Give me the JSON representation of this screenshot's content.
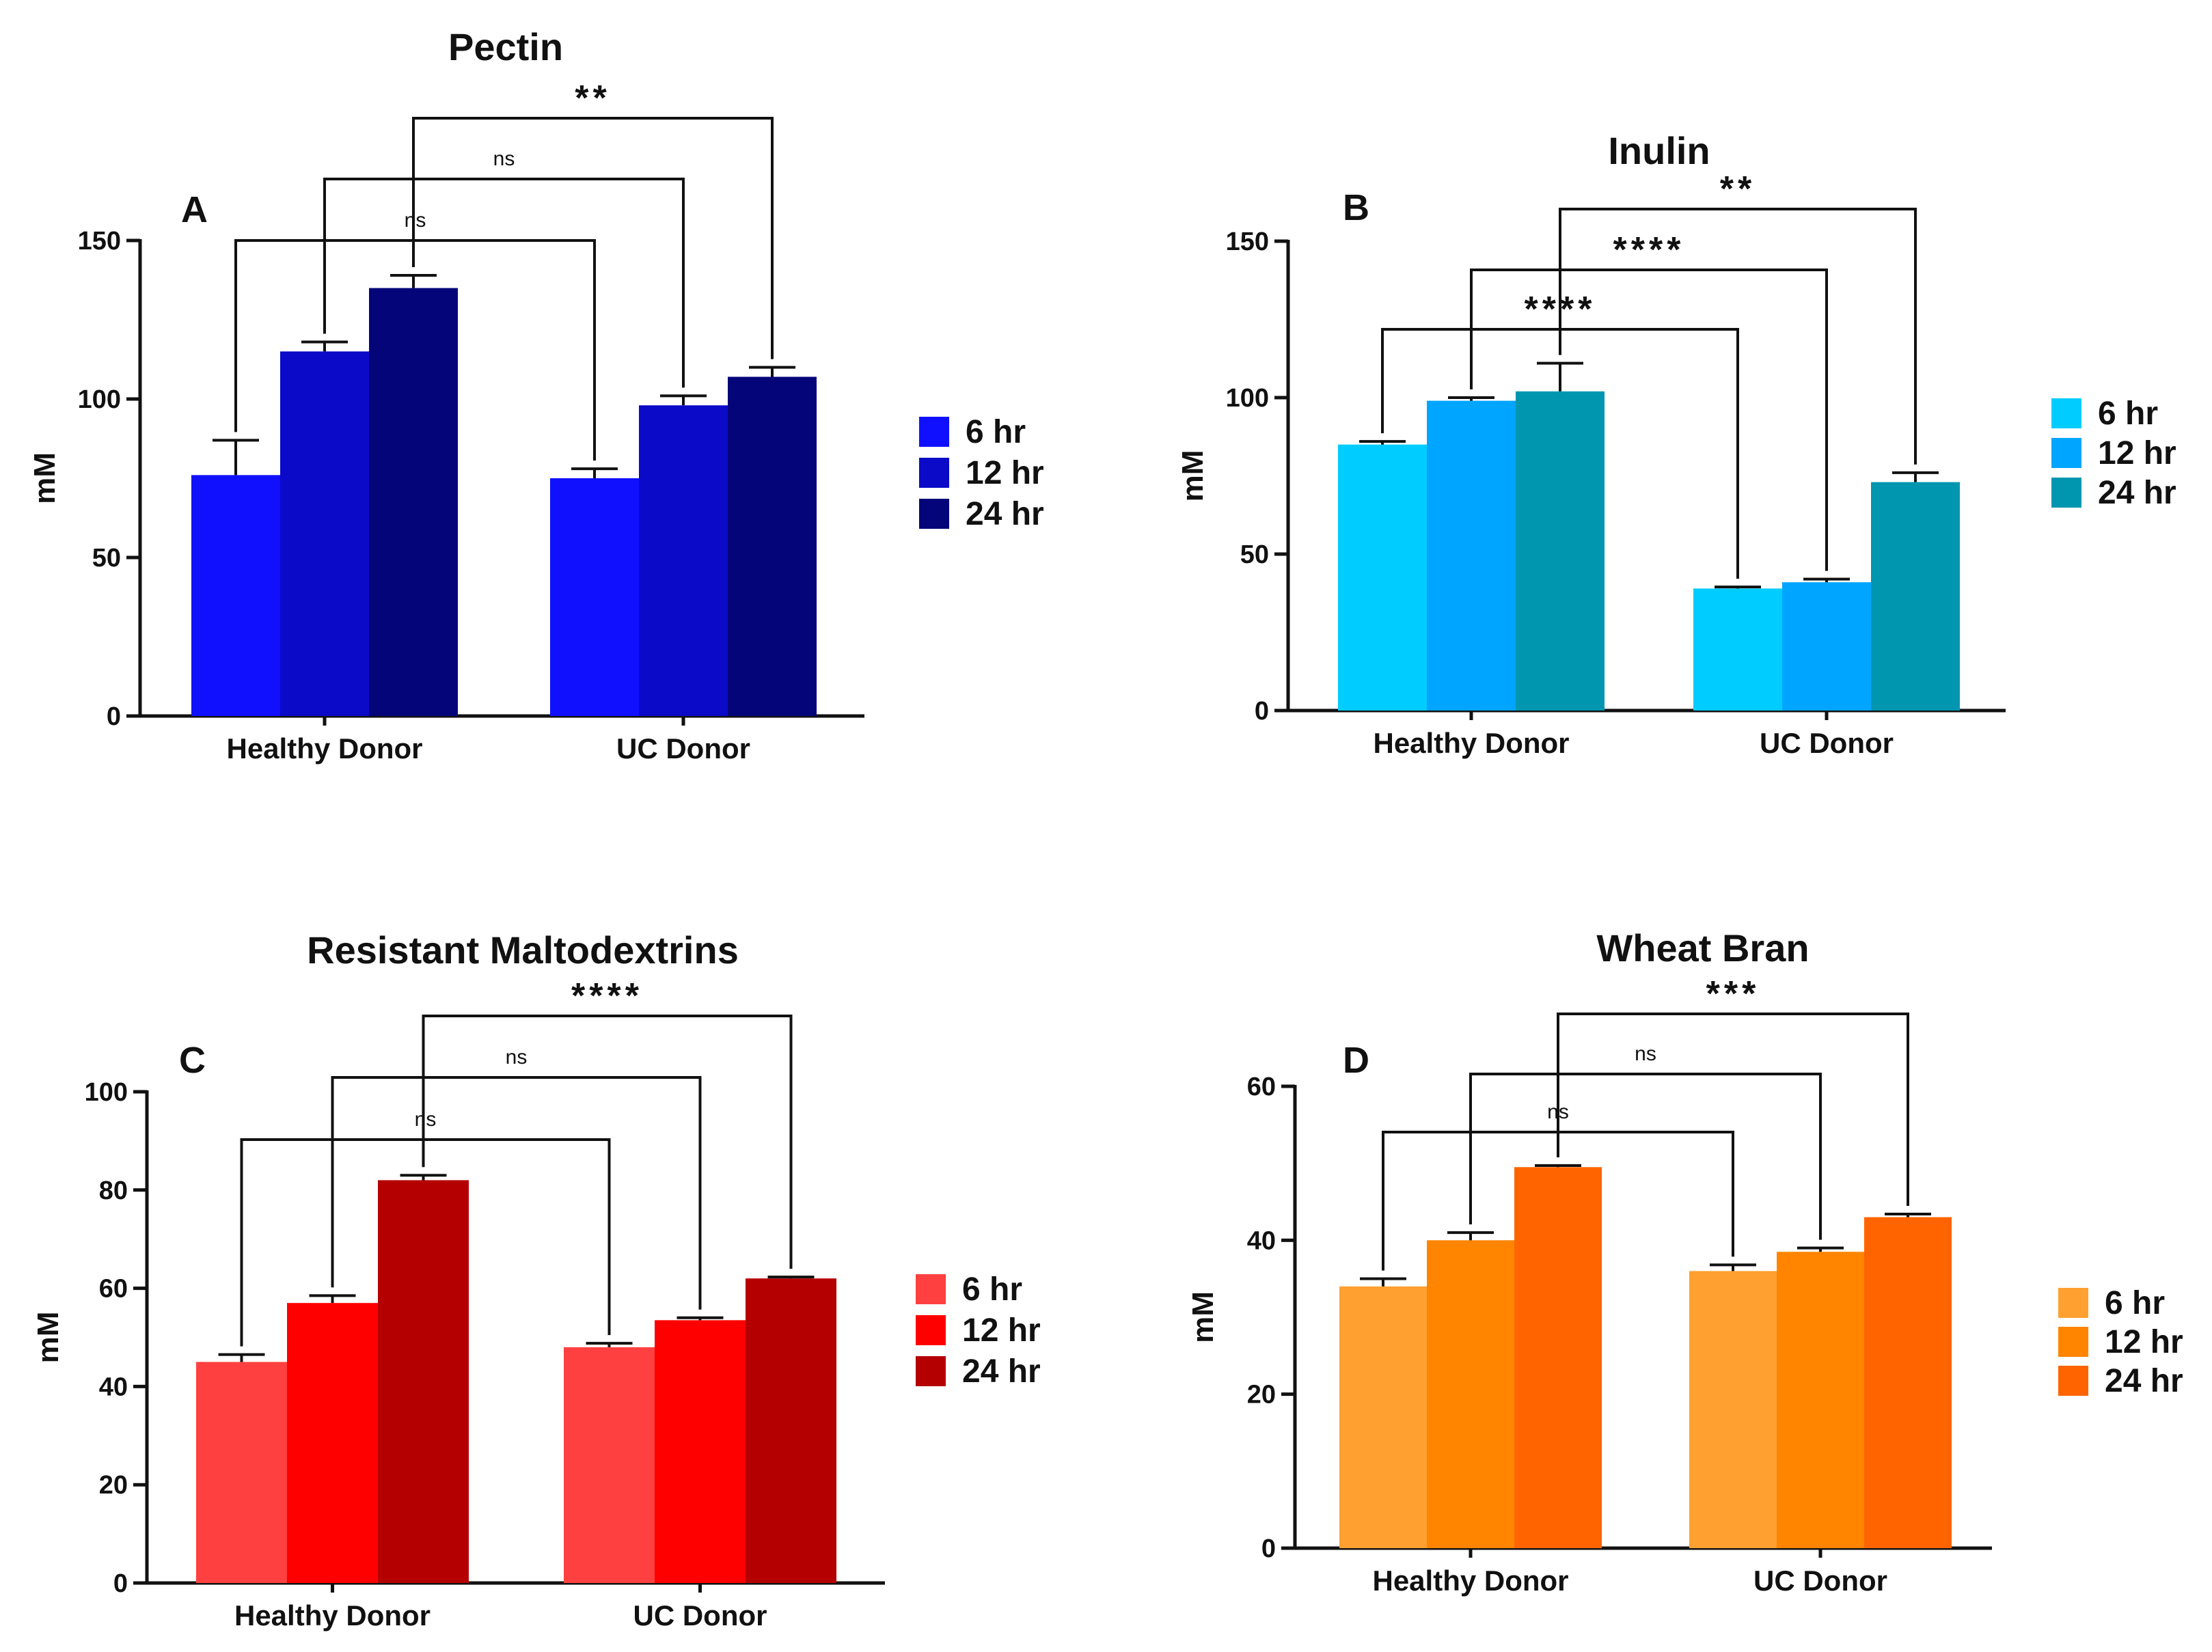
{
  "chart_data": [
    {
      "type": "bar",
      "panel": "A",
      "title": "Pectin",
      "ylabel": "mM",
      "xlabel": "",
      "ylim": [
        0,
        150
      ],
      "yticks": [
        0,
        50,
        100,
        150
      ],
      "categories": [
        "Healthy Donor",
        "UC Donor"
      ],
      "series": [
        {
          "name": "6 hr",
          "color": "#1010FF",
          "values": [
            76,
            75
          ],
          "errors": [
            11,
            3
          ]
        },
        {
          "name": "12 hr",
          "color": "#0A0AC8",
          "values": [
            115,
            98
          ],
          "errors": [
            3,
            3
          ]
        },
        {
          "name": "24 hr",
          "color": "#05057A",
          "values": [
            135,
            107
          ],
          "errors": [
            4,
            3
          ]
        }
      ],
      "comparisons": [
        {
          "label": "ns",
          "from_series": 0,
          "to_series": 0
        },
        {
          "label": "ns",
          "from_series": 1,
          "to_series": 1
        },
        {
          "label": "**",
          "from_series": 2,
          "to_series": 2
        }
      ],
      "legend_position": "right"
    },
    {
      "type": "bar",
      "panel": "B",
      "title": "Inulin",
      "ylabel": "mM",
      "xlabel": "",
      "ylim": [
        0,
        150
      ],
      "yticks": [
        0,
        50,
        100,
        150
      ],
      "categories": [
        "Healthy Donor",
        "UC Donor"
      ],
      "series": [
        {
          "name": "6 hr",
          "color": "#00CCFF",
          "values": [
            85,
            39
          ],
          "errors": [
            1,
            0.5
          ]
        },
        {
          "name": "12 hr",
          "color": "#00A5FF",
          "values": [
            99,
            41
          ],
          "errors": [
            1,
            1
          ]
        },
        {
          "name": "24 hr",
          "color": "#0096B0",
          "values": [
            102,
            73
          ],
          "errors": [
            9,
            3
          ]
        }
      ],
      "comparisons": [
        {
          "label": "****",
          "from_series": 0,
          "to_series": 0
        },
        {
          "label": "****",
          "from_series": 1,
          "to_series": 1
        },
        {
          "label": "**",
          "from_series": 2,
          "to_series": 2
        }
      ],
      "legend_position": "right"
    },
    {
      "type": "bar",
      "panel": "C",
      "title": "Resistant Maltodextrins",
      "ylabel": "mM",
      "xlabel": "",
      "ylim": [
        0,
        100
      ],
      "yticks": [
        0,
        20,
        40,
        60,
        80,
        100
      ],
      "categories": [
        "Healthy Donor",
        "UC Donor"
      ],
      "series": [
        {
          "name": "6 hr",
          "color": "#FF4040",
          "values": [
            45,
            48
          ],
          "errors": [
            1.5,
            0.8
          ]
        },
        {
          "name": "12 hr",
          "color": "#FF0000",
          "values": [
            57,
            53.5
          ],
          "errors": [
            1.5,
            0.5
          ]
        },
        {
          "name": "24 hr",
          "color": "#B50000",
          "values": [
            82,
            62
          ],
          "errors": [
            1,
            0.3
          ]
        }
      ],
      "comparisons": [
        {
          "label": "ns",
          "from_series": 0,
          "to_series": 0
        },
        {
          "label": "ns",
          "from_series": 1,
          "to_series": 1
        },
        {
          "label": "****",
          "from_series": 2,
          "to_series": 2
        }
      ],
      "legend_position": "right"
    },
    {
      "type": "bar",
      "panel": "D",
      "title": "Wheat Bran",
      "ylabel": "mM",
      "xlabel": "",
      "ylim": [
        0,
        60
      ],
      "yticks": [
        0,
        20,
        40,
        60
      ],
      "categories": [
        "Healthy Donor",
        "UC Donor"
      ],
      "series": [
        {
          "name": "6 hr",
          "color": "#FFA030",
          "values": [
            34,
            36
          ],
          "errors": [
            1,
            0.8
          ]
        },
        {
          "name": "12 hr",
          "color": "#FF8500",
          "values": [
            40,
            38.5
          ],
          "errors": [
            1,
            0.5
          ]
        },
        {
          "name": "24 hr",
          "color": "#FF6400",
          "values": [
            49.5,
            43
          ],
          "errors": [
            0.2,
            0.4
          ]
        }
      ],
      "comparisons": [
        {
          "label": "ns",
          "from_series": 0,
          "to_series": 0
        },
        {
          "label": "ns",
          "from_series": 1,
          "to_series": 1
        },
        {
          "label": "***",
          "from_series": 2,
          "to_series": 2
        }
      ],
      "legend_position": "right"
    }
  ]
}
